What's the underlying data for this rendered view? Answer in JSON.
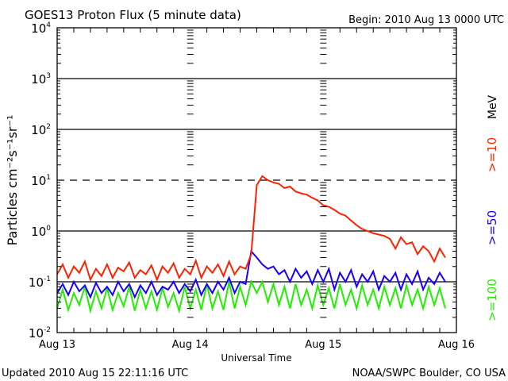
{
  "chart_data": {
    "type": "line",
    "title": "GOES13 Proton Flux (5 minute data)",
    "begin_label": "Begin: 2010 Aug 13 0000 UTC",
    "xlabel": "Universal Time",
    "ylabel": "Particles cm⁻²s⁻¹sr⁻¹",
    "x_unit": "hours since 2010 Aug 13 00:00 UTC",
    "x_ticks": [
      {
        "label": "Aug 13",
        "hour": 0
      },
      {
        "label": "Aug 14",
        "hour": 24
      },
      {
        "label": "Aug 15",
        "hour": 48
      },
      {
        "label": "Aug 16",
        "hour": 72
      }
    ],
    "xlim": [
      0,
      72
    ],
    "yscale": "log",
    "ylim": [
      0.01,
      10000
    ],
    "y_ticks": [
      {
        "base": "10",
        "exp": "4",
        "value": 10000
      },
      {
        "base": "10",
        "exp": "3",
        "value": 1000
      },
      {
        "base": "10",
        "exp": "2",
        "value": 100
      },
      {
        "base": "10",
        "exp": "1",
        "value": 10
      },
      {
        "base": "10",
        "exp": "0",
        "value": 1
      },
      {
        "base": "10",
        "exp": "-1",
        "value": 0.1
      },
      {
        "base": "10",
        "exp": "-2",
        "value": 0.01
      }
    ],
    "grid": "horizontal at each decade; 10^1 dashed",
    "energy_unit": "MeV",
    "series": [
      {
        "name": ">=10",
        "color": "#ff2200",
        "x": [
          0,
          1,
          2,
          3,
          4,
          5,
          6,
          7,
          8,
          9,
          10,
          11,
          12,
          13,
          14,
          15,
          16,
          17,
          18,
          19,
          20,
          21,
          22,
          23,
          24,
          25,
          26,
          27,
          28,
          29,
          30,
          31,
          32,
          33,
          34,
          35,
          36,
          37,
          38,
          39,
          40,
          41,
          42,
          43,
          44,
          45,
          46,
          47,
          48,
          49,
          50,
          51,
          52,
          53,
          54,
          55,
          56,
          57,
          58,
          59,
          60,
          61,
          62,
          63,
          64,
          65,
          66,
          67,
          68,
          69,
          70
        ],
        "values": [
          0.14,
          0.22,
          0.12,
          0.2,
          0.15,
          0.25,
          0.11,
          0.18,
          0.13,
          0.22,
          0.12,
          0.19,
          0.16,
          0.24,
          0.12,
          0.17,
          0.14,
          0.21,
          0.11,
          0.2,
          0.15,
          0.23,
          0.12,
          0.18,
          0.14,
          0.26,
          0.12,
          0.2,
          0.15,
          0.22,
          0.13,
          0.25,
          0.14,
          0.2,
          0.18,
          0.35,
          8,
          12,
          10,
          9,
          8.5,
          7,
          7.5,
          6,
          5.5,
          5.2,
          4.5,
          4,
          3.2,
          3,
          2.6,
          2.2,
          2,
          1.6,
          1.3,
          1.1,
          1.0,
          0.9,
          0.85,
          0.8,
          0.7,
          0.45,
          0.75,
          0.55,
          0.6,
          0.35,
          0.5,
          0.4,
          0.25,
          0.45,
          0.3
        ]
      },
      {
        "name": ">=50",
        "color": "#1a00ff",
        "x": [
          0,
          1,
          2,
          3,
          4,
          5,
          6,
          7,
          8,
          9,
          10,
          11,
          12,
          13,
          14,
          15,
          16,
          17,
          18,
          19,
          20,
          21,
          22,
          23,
          24,
          25,
          26,
          27,
          28,
          29,
          30,
          31,
          32,
          33,
          34,
          35,
          36,
          37,
          38,
          39,
          40,
          41,
          42,
          43,
          44,
          45,
          46,
          47,
          48,
          49,
          50,
          51,
          52,
          53,
          54,
          55,
          56,
          57,
          58,
          59,
          60,
          61,
          62,
          63,
          64,
          65,
          66,
          67,
          68,
          69,
          70
        ],
        "values": [
          0.06,
          0.09,
          0.055,
          0.1,
          0.065,
          0.085,
          0.05,
          0.095,
          0.06,
          0.08,
          0.055,
          0.1,
          0.065,
          0.09,
          0.05,
          0.085,
          0.06,
          0.1,
          0.055,
          0.08,
          0.07,
          0.1,
          0.06,
          0.09,
          0.065,
          0.11,
          0.055,
          0.09,
          0.06,
          0.1,
          0.07,
          0.12,
          0.06,
          0.1,
          0.09,
          0.4,
          0.3,
          0.22,
          0.18,
          0.2,
          0.14,
          0.17,
          0.1,
          0.18,
          0.12,
          0.16,
          0.09,
          0.17,
          0.1,
          0.18,
          0.07,
          0.15,
          0.1,
          0.17,
          0.08,
          0.14,
          0.1,
          0.16,
          0.07,
          0.13,
          0.1,
          0.15,
          0.07,
          0.14,
          0.09,
          0.16,
          0.07,
          0.12,
          0.09,
          0.15,
          0.1
        ]
      },
      {
        "name": ">=100",
        "color": "#22ee00",
        "x": [
          0,
          1,
          2,
          3,
          4,
          5,
          6,
          7,
          8,
          9,
          10,
          11,
          12,
          13,
          14,
          15,
          16,
          17,
          18,
          19,
          20,
          21,
          22,
          23,
          24,
          25,
          26,
          27,
          28,
          29,
          30,
          31,
          32,
          33,
          34,
          35,
          36,
          37,
          38,
          39,
          40,
          41,
          42,
          43,
          44,
          45,
          46,
          47,
          48,
          49,
          50,
          51,
          52,
          53,
          54,
          55,
          56,
          57,
          58,
          59,
          60,
          61,
          62,
          63,
          64,
          65,
          66,
          67,
          68,
          69,
          70
        ],
        "values": [
          0.03,
          0.07,
          0.028,
          0.06,
          0.035,
          0.08,
          0.027,
          0.065,
          0.03,
          0.075,
          0.028,
          0.06,
          0.033,
          0.08,
          0.027,
          0.07,
          0.03,
          0.065,
          0.028,
          0.075,
          0.032,
          0.06,
          0.027,
          0.08,
          0.03,
          0.07,
          0.028,
          0.09,
          0.03,
          0.065,
          0.028,
          0.1,
          0.03,
          0.08,
          0.035,
          0.1,
          0.06,
          0.1,
          0.04,
          0.09,
          0.035,
          0.08,
          0.03,
          0.09,
          0.035,
          0.07,
          0.03,
          0.085,
          0.035,
          0.075,
          0.03,
          0.09,
          0.035,
          0.07,
          0.03,
          0.085,
          0.035,
          0.07,
          0.03,
          0.08,
          0.035,
          0.075,
          0.03,
          0.085,
          0.035,
          0.07,
          0.03,
          0.08,
          0.035,
          0.075,
          0.03
        ]
      }
    ]
  },
  "footer": {
    "updated": "Updated 2010 Aug 15 22:11:16 UTC",
    "credit": "NOAA/SWPC Boulder, CO USA"
  }
}
